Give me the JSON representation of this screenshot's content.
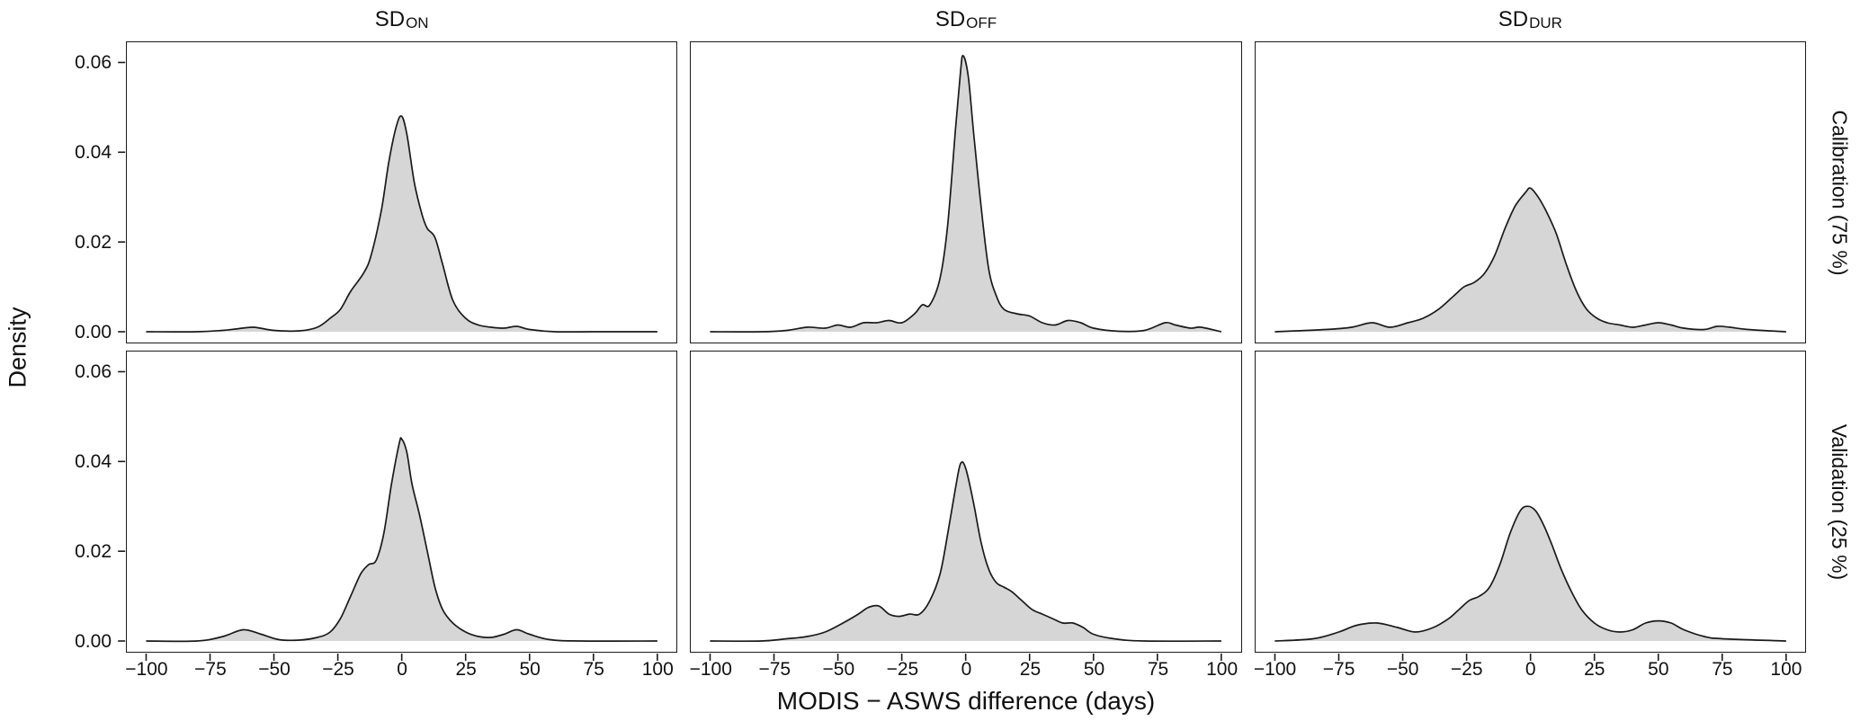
{
  "figure": {
    "x_label": "MODIS − ASWS difference (days)",
    "y_label": "Density",
    "col_titles": [
      {
        "main": "SD",
        "sub": "ON"
      },
      {
        "main": "SD",
        "sub": "OFF"
      },
      {
        "main": "SD",
        "sub": "DUR"
      }
    ],
    "row_labels": [
      "Calibration (75 %)",
      "Validation (25 %)"
    ]
  },
  "style": {
    "fill_color": "#d6d6d6",
    "line_color": "#1a1a1a",
    "panel_border_color": "#1a1a1a",
    "background": "#ffffff"
  },
  "chart_data": {
    "type": "area",
    "title": "",
    "xlabel": "MODIS − ASWS difference (days)",
    "ylabel": "Density",
    "x_range": [
      -107.5,
      107.5
    ],
    "y_range": [
      -0.0024,
      0.0645
    ],
    "x_tick_values": [
      -100,
      -75,
      -50,
      -25,
      0,
      25,
      50,
      75,
      100
    ],
    "y_tick_values": [
      0,
      0.02,
      0.04,
      0.06
    ],
    "grid": false,
    "legend": "none",
    "facets": [
      {
        "row": "Calibration (75 %)",
        "col": "SD_ON",
        "points": [
          [
            -100,
            0
          ],
          [
            -80,
            0
          ],
          [
            -70,
            0.0003
          ],
          [
            -65,
            0.0006
          ],
          [
            -58,
            0.001
          ],
          [
            -50,
            0.0003
          ],
          [
            -40,
            0.0002
          ],
          [
            -33,
            0.001
          ],
          [
            -28,
            0.003
          ],
          [
            -24,
            0.005
          ],
          [
            -20,
            0.009
          ],
          [
            -15,
            0.013
          ],
          [
            -12,
            0.017
          ],
          [
            -8,
            0.027
          ],
          [
            -5,
            0.038
          ],
          [
            -2,
            0.046
          ],
          [
            0,
            0.048
          ],
          [
            2,
            0.044
          ],
          [
            5,
            0.033
          ],
          [
            8,
            0.026
          ],
          [
            10,
            0.023
          ],
          [
            13,
            0.021
          ],
          [
            16,
            0.015
          ],
          [
            20,
            0.007
          ],
          [
            25,
            0.003
          ],
          [
            30,
            0.0015
          ],
          [
            35,
            0.001
          ],
          [
            40,
            0.0008
          ],
          [
            45,
            0.0012
          ],
          [
            50,
            0.0005
          ],
          [
            60,
            0
          ],
          [
            75,
            0
          ],
          [
            100,
            0
          ]
        ]
      },
      {
        "row": "Calibration (75 %)",
        "col": "SD_OFF",
        "points": [
          [
            -100,
            0
          ],
          [
            -80,
            0
          ],
          [
            -70,
            0.0003
          ],
          [
            -62,
            0.001
          ],
          [
            -55,
            0.0008
          ],
          [
            -50,
            0.0015
          ],
          [
            -45,
            0.001
          ],
          [
            -40,
            0.002
          ],
          [
            -35,
            0.002
          ],
          [
            -30,
            0.0025
          ],
          [
            -25,
            0.002
          ],
          [
            -20,
            0.004
          ],
          [
            -17,
            0.006
          ],
          [
            -14,
            0.006
          ],
          [
            -10,
            0.012
          ],
          [
            -7,
            0.024
          ],
          [
            -4,
            0.045
          ],
          [
            -2,
            0.058
          ],
          [
            -1,
            0.0615
          ],
          [
            1,
            0.057
          ],
          [
            3,
            0.045
          ],
          [
            6,
            0.028
          ],
          [
            9,
            0.014
          ],
          [
            12,
            0.008
          ],
          [
            15,
            0.005
          ],
          [
            20,
            0.004
          ],
          [
            25,
            0.0035
          ],
          [
            30,
            0.002
          ],
          [
            35,
            0.0015
          ],
          [
            40,
            0.0025
          ],
          [
            45,
            0.002
          ],
          [
            50,
            0.0008
          ],
          [
            60,
            0.0001
          ],
          [
            70,
            0.0003
          ],
          [
            78,
            0.002
          ],
          [
            82,
            0.0015
          ],
          [
            88,
            0.0008
          ],
          [
            92,
            0.001
          ],
          [
            100,
            0
          ]
        ]
      },
      {
        "row": "Calibration (75 %)",
        "col": "SD_DUR",
        "points": [
          [
            -100,
            0
          ],
          [
            -80,
            0.0005
          ],
          [
            -70,
            0.001
          ],
          [
            -62,
            0.002
          ],
          [
            -55,
            0.001
          ],
          [
            -48,
            0.002
          ],
          [
            -42,
            0.003
          ],
          [
            -36,
            0.005
          ],
          [
            -30,
            0.008
          ],
          [
            -26,
            0.01
          ],
          [
            -22,
            0.011
          ],
          [
            -18,
            0.013
          ],
          [
            -14,
            0.017
          ],
          [
            -10,
            0.023
          ],
          [
            -6,
            0.028
          ],
          [
            -2,
            0.031
          ],
          [
            0,
            0.032
          ],
          [
            3,
            0.03
          ],
          [
            6,
            0.027
          ],
          [
            10,
            0.022
          ],
          [
            14,
            0.015
          ],
          [
            18,
            0.009
          ],
          [
            22,
            0.005
          ],
          [
            26,
            0.003
          ],
          [
            30,
            0.002
          ],
          [
            35,
            0.0015
          ],
          [
            40,
            0.001
          ],
          [
            45,
            0.0015
          ],
          [
            50,
            0.002
          ],
          [
            55,
            0.0015
          ],
          [
            60,
            0.0008
          ],
          [
            68,
            0.0005
          ],
          [
            73,
            0.0012
          ],
          [
            78,
            0.001
          ],
          [
            85,
            0.0005
          ],
          [
            100,
            0
          ]
        ]
      },
      {
        "row": "Validation (25 %)",
        "col": "SD_ON",
        "points": [
          [
            -100,
            0
          ],
          [
            -80,
            0
          ],
          [
            -70,
            0.001
          ],
          [
            -62,
            0.0025
          ],
          [
            -55,
            0.0015
          ],
          [
            -48,
            0.0003
          ],
          [
            -40,
            0.0002
          ],
          [
            -33,
            0.0008
          ],
          [
            -28,
            0.002
          ],
          [
            -24,
            0.005
          ],
          [
            -20,
            0.01
          ],
          [
            -16,
            0.015
          ],
          [
            -13,
            0.017
          ],
          [
            -10,
            0.018
          ],
          [
            -7,
            0.024
          ],
          [
            -4,
            0.035
          ],
          [
            -1,
            0.044
          ],
          [
            0,
            0.045
          ],
          [
            2,
            0.042
          ],
          [
            4,
            0.035
          ],
          [
            7,
            0.028
          ],
          [
            10,
            0.02
          ],
          [
            13,
            0.012
          ],
          [
            16,
            0.007
          ],
          [
            20,
            0.004
          ],
          [
            25,
            0.002
          ],
          [
            30,
            0.001
          ],
          [
            35,
            0.0008
          ],
          [
            40,
            0.0015
          ],
          [
            45,
            0.0025
          ],
          [
            50,
            0.0015
          ],
          [
            58,
            0.0003
          ],
          [
            70,
            0
          ],
          [
            100,
            0
          ]
        ]
      },
      {
        "row": "Validation (25 %)",
        "col": "SD_OFF",
        "points": [
          [
            -100,
            0
          ],
          [
            -80,
            0
          ],
          [
            -70,
            0.0005
          ],
          [
            -62,
            0.001
          ],
          [
            -55,
            0.002
          ],
          [
            -48,
            0.004
          ],
          [
            -42,
            0.006
          ],
          [
            -38,
            0.0075
          ],
          [
            -34,
            0.0078
          ],
          [
            -30,
            0.006
          ],
          [
            -26,
            0.0055
          ],
          [
            -22,
            0.006
          ],
          [
            -18,
            0.006
          ],
          [
            -14,
            0.009
          ],
          [
            -10,
            0.015
          ],
          [
            -7,
            0.024
          ],
          [
            -4,
            0.034
          ],
          [
            -2,
            0.0395
          ],
          [
            0,
            0.0385
          ],
          [
            3,
            0.031
          ],
          [
            6,
            0.022
          ],
          [
            9,
            0.016
          ],
          [
            12,
            0.013
          ],
          [
            15,
            0.012
          ],
          [
            18,
            0.011
          ],
          [
            22,
            0.009
          ],
          [
            26,
            0.007
          ],
          [
            30,
            0.006
          ],
          [
            34,
            0.005
          ],
          [
            38,
            0.004
          ],
          [
            42,
            0.004
          ],
          [
            46,
            0.003
          ],
          [
            50,
            0.0015
          ],
          [
            58,
            0.0005
          ],
          [
            70,
            0
          ],
          [
            100,
            0
          ]
        ]
      },
      {
        "row": "Validation (25 %)",
        "col": "SD_DUR",
        "points": [
          [
            -100,
            0
          ],
          [
            -85,
            0.0005
          ],
          [
            -75,
            0.002
          ],
          [
            -68,
            0.0035
          ],
          [
            -60,
            0.004
          ],
          [
            -52,
            0.003
          ],
          [
            -45,
            0.002
          ],
          [
            -38,
            0.003
          ],
          [
            -32,
            0.005
          ],
          [
            -28,
            0.007
          ],
          [
            -24,
            0.009
          ],
          [
            -20,
            0.01
          ],
          [
            -16,
            0.012
          ],
          [
            -12,
            0.017
          ],
          [
            -8,
            0.024
          ],
          [
            -4,
            0.029
          ],
          [
            -1,
            0.03
          ],
          [
            2,
            0.029
          ],
          [
            5,
            0.026
          ],
          [
            8,
            0.022
          ],
          [
            12,
            0.016
          ],
          [
            16,
            0.011
          ],
          [
            20,
            0.007
          ],
          [
            25,
            0.004
          ],
          [
            30,
            0.0025
          ],
          [
            35,
            0.002
          ],
          [
            40,
            0.0025
          ],
          [
            45,
            0.004
          ],
          [
            50,
            0.0045
          ],
          [
            55,
            0.004
          ],
          [
            60,
            0.0025
          ],
          [
            68,
            0.001
          ],
          [
            75,
            0.0005
          ],
          [
            100,
            0
          ]
        ]
      }
    ]
  }
}
